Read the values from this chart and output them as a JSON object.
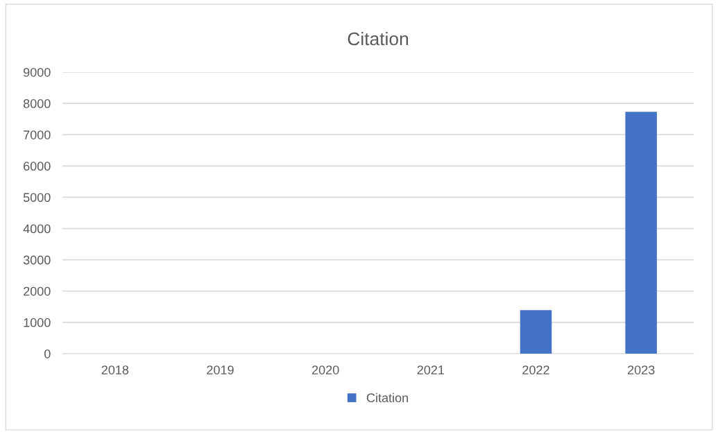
{
  "chart_data": {
    "type": "bar",
    "title": "Citation",
    "categories": [
      "2018",
      "2019",
      "2020",
      "2021",
      "2022",
      "2023"
    ],
    "series": [
      {
        "name": "Citation",
        "color": "#4472c4",
        "values": [
          0,
          0,
          0,
          0,
          1390,
          7730
        ]
      }
    ],
    "ylim": [
      0,
      9000
    ],
    "yticks": [
      0,
      1000,
      2000,
      3000,
      4000,
      5000,
      6000,
      7000,
      8000,
      9000
    ],
    "grid": "y",
    "legend": "bottom"
  }
}
